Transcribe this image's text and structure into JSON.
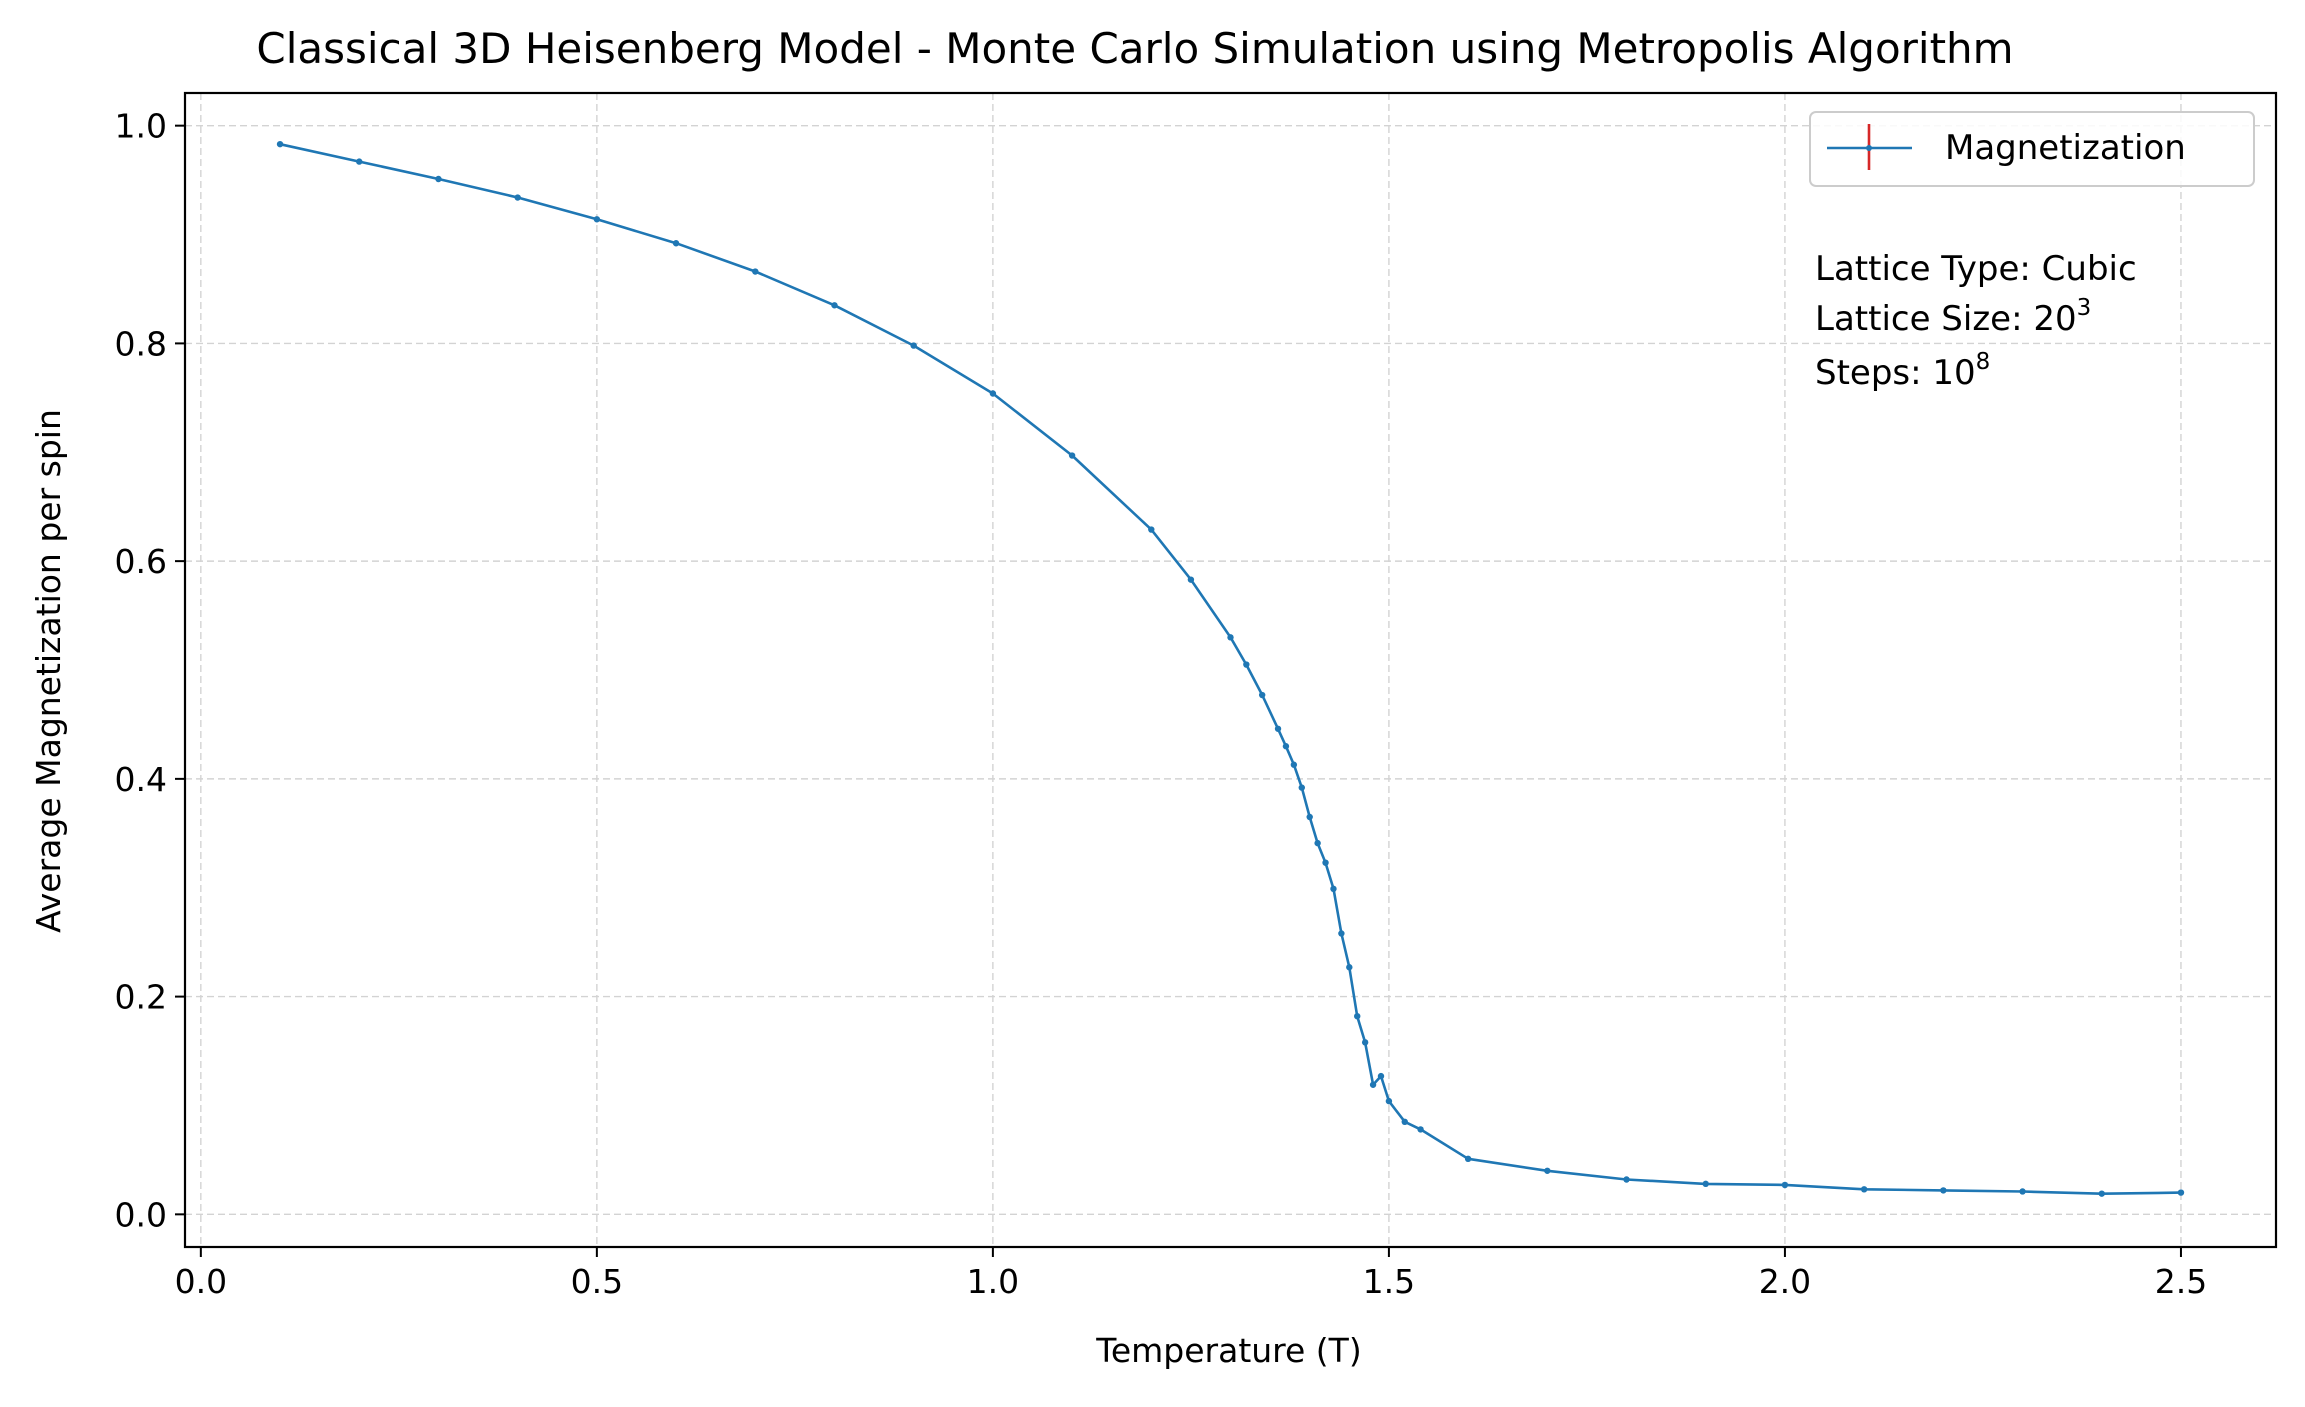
{
  "chart_data": {
    "type": "line",
    "title": "Classical 3D Heisenberg Model - Monte Carlo Simulation using Metropolis Algorithm",
    "xlabel": "Temperature (T)",
    "ylabel": "Average Magnetization per spin",
    "xlim": [
      -0.02,
      2.62
    ],
    "ylim": [
      -0.03,
      1.03
    ],
    "xticks": [
      0.0,
      0.5,
      1.0,
      1.5,
      2.0,
      2.5
    ],
    "xtick_labels": [
      "0.0",
      "0.5",
      "1.0",
      "1.5",
      "2.0",
      "2.5"
    ],
    "yticks": [
      0.0,
      0.2,
      0.4,
      0.6,
      0.8,
      1.0
    ],
    "ytick_labels": [
      "0.0",
      "0.2",
      "0.4",
      "0.6",
      "0.8",
      "1.0"
    ],
    "grid": true,
    "legend_position": "upper right",
    "annotation": {
      "lattice_type": "Lattice Type: Cubic",
      "lattice_size_prefix": "Lattice Size: ",
      "lattice_size_base": "20",
      "lattice_size_exp": "3",
      "steps_prefix": "Steps: ",
      "steps_base": "10",
      "steps_exp": "8"
    },
    "series": [
      {
        "name": "Magnetization",
        "color": "#1f77b4",
        "errorbar_color": "#d62728",
        "x": [
          0.1,
          0.2,
          0.3,
          0.4,
          0.5,
          0.6,
          0.7,
          0.8,
          0.9,
          1.0,
          1.1,
          1.2,
          1.25,
          1.3,
          1.32,
          1.34,
          1.36,
          1.37,
          1.38,
          1.39,
          1.4,
          1.41,
          1.42,
          1.43,
          1.44,
          1.45,
          1.46,
          1.47,
          1.48,
          1.49,
          1.5,
          1.52,
          1.54,
          1.6,
          1.7,
          1.8,
          1.9,
          2.0,
          2.1,
          2.2,
          2.3,
          2.4,
          2.5
        ],
        "y": [
          0.983,
          0.967,
          0.951,
          0.934,
          0.914,
          0.892,
          0.866,
          0.835,
          0.798,
          0.754,
          0.697,
          0.629,
          0.583,
          0.53,
          0.505,
          0.477,
          0.446,
          0.43,
          0.413,
          0.392,
          0.365,
          0.341,
          0.323,
          0.299,
          0.258,
          0.227,
          0.182,
          0.158,
          0.119,
          0.127,
          0.104,
          0.085,
          0.078,
          0.051,
          0.04,
          0.032,
          0.028,
          0.027,
          0.023,
          0.022,
          0.021,
          0.019,
          0.02
        ]
      }
    ]
  }
}
